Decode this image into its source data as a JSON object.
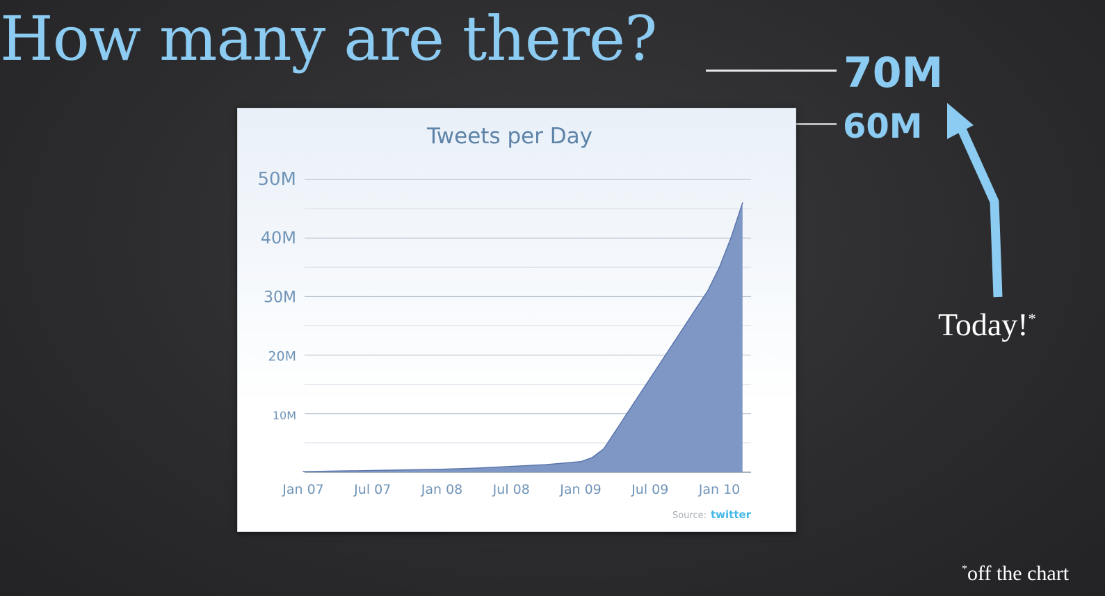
{
  "slide": {
    "title": "How many are there?",
    "ref_high": "70M",
    "ref_low": "60M",
    "callout": "Today!",
    "callout_mark": "*",
    "footnote_mark": "*",
    "footnote": "off the chart"
  },
  "chart_data": {
    "type": "area",
    "title": "Tweets per Day",
    "xlabel": "",
    "ylabel": "",
    "y_tick_labels": [
      "50M",
      "40M",
      "30M",
      "20M",
      "10M"
    ],
    "y_ticks": [
      50,
      40,
      30,
      20,
      10
    ],
    "x_tick_labels": [
      "Jan 07",
      "Jul 07",
      "Jan 08",
      "Jul 08",
      "Jan 09",
      "Jul 09",
      "Jan 10"
    ],
    "ylim": [
      0,
      50
    ],
    "grid": true,
    "source_label": "Source:",
    "source_brand": "twitter",
    "series": [
      {
        "values_unit": "M tweets/day",
        "x": [
          "2007-01",
          "2007-04",
          "2007-07",
          "2007-10",
          "2008-01",
          "2008-04",
          "2008-07",
          "2008-10",
          "2009-01",
          "2009-02",
          "2009-03",
          "2009-04",
          "2009-05",
          "2009-06",
          "2009-07",
          "2009-08",
          "2009-09",
          "2009-10",
          "2009-11",
          "2009-12",
          "2010-01",
          "2010-02",
          "2010-03"
        ],
        "values": [
          0.1,
          0.2,
          0.3,
          0.4,
          0.5,
          0.7,
          1.0,
          1.3,
          1.8,
          2.5,
          4,
          7,
          10,
          13,
          16,
          19,
          22,
          25,
          28,
          31,
          35,
          40,
          46
        ]
      }
    ],
    "colors": {
      "area": "#7f97c4",
      "line": "#5b76ad",
      "axis_text": "#6f94b8",
      "title": "#5d83a8",
      "brand": "#45b8e8"
    }
  }
}
